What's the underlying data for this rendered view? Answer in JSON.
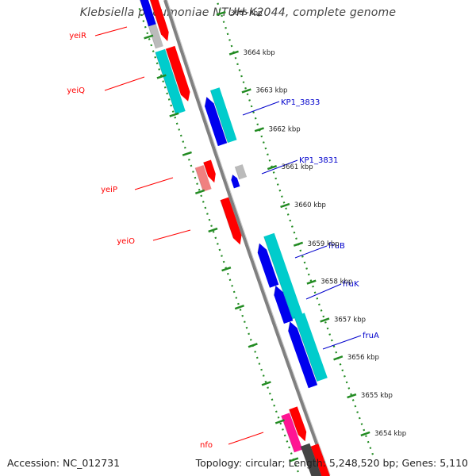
{
  "title": "Klebsiella pneumoniae NTUH-K2044, complete genome",
  "footer": {
    "accession": "Accession: NC_012731",
    "topology": "Topology: circular; Length: 5,248,520 bp; Genes: 5,110"
  },
  "colors": {
    "forward_cds": "#ff0000",
    "forward_cds_light": "#f08080",
    "forward_cds_magenta": "#ff1493",
    "reverse_cds": "#0000ee",
    "reverse_cds_cyan": "#00cccc",
    "other_feature": "#bbbbbb",
    "backbone": "#808080",
    "tick": "#228b22",
    "forward_label": "#ff0000",
    "reverse_label": "#0000cc"
  },
  "scale": {
    "unit": "kbp",
    "ticks": [
      "3665 kbp",
      "3664 kbp",
      "3663 kbp",
      "3662 kbp",
      "3661 kbp",
      "3660 kbp",
      "3659 kbp",
      "3658 kbp",
      "3657 kbp",
      "3656 kbp",
      "3655 kbp",
      "3654 kbp"
    ]
  },
  "gene_labels": {
    "forward": [
      "yeiR",
      "yeiQ",
      "yeiP",
      "yeiO",
      "nfo"
    ],
    "reverse": [
      "KP1_3833",
      "KP1_3831",
      "fruB",
      "fruK",
      "fruA"
    ]
  }
}
